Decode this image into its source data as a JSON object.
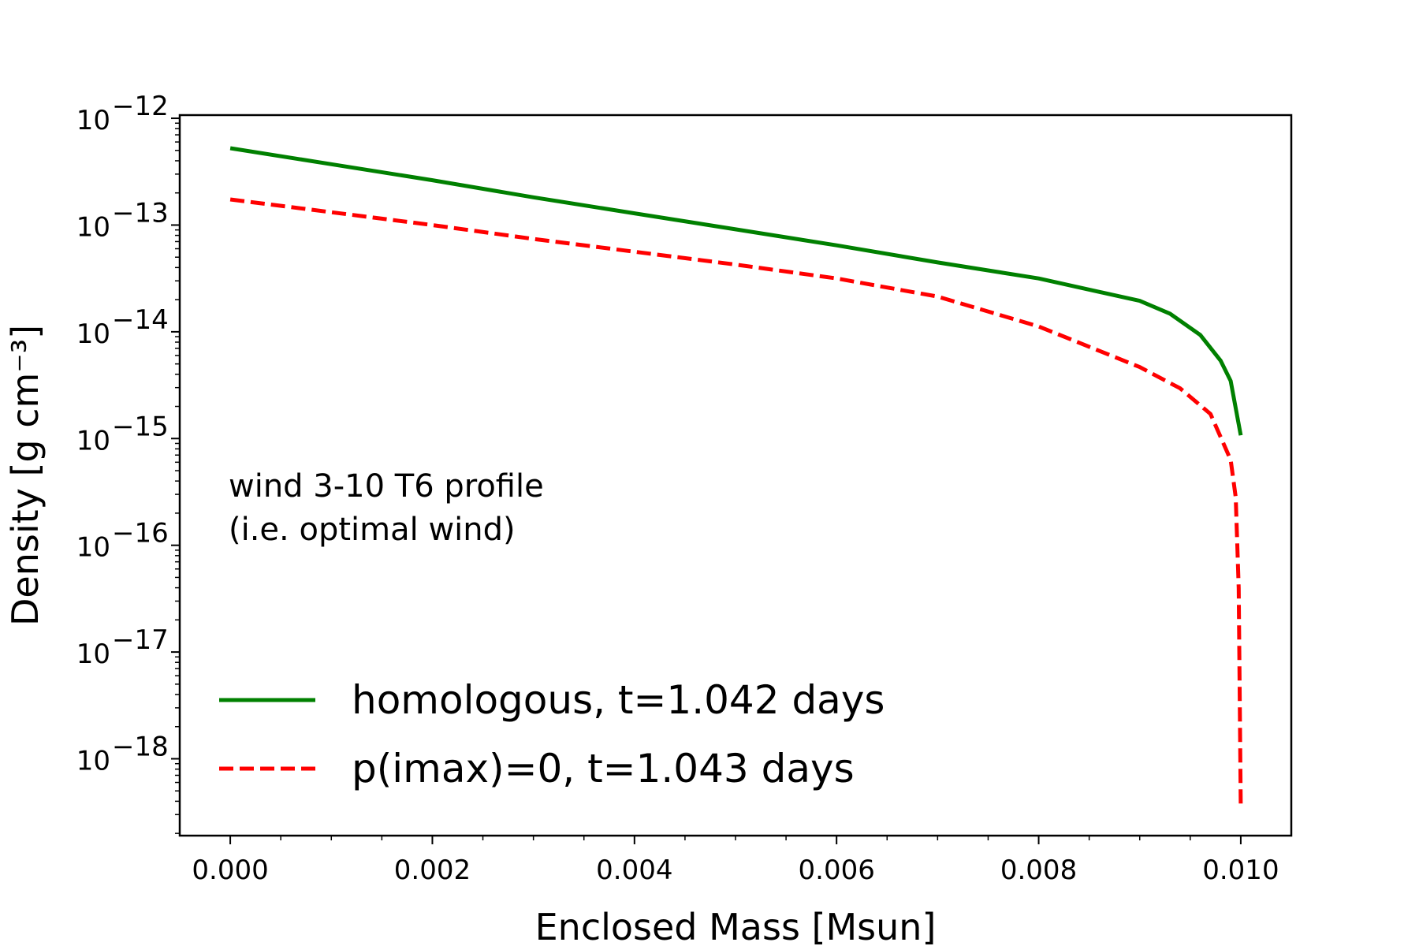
{
  "chart_data": {
    "type": "line",
    "xlabel": "Enclosed Mass [Msun]",
    "ylabel": "Density [g cm⁻³]",
    "yscale": "log",
    "xlim": [
      -0.0005,
      0.0105
    ],
    "ylim_exponent": [
      -18.72,
      -11.97
    ],
    "xticks": [
      "0.000",
      "0.002",
      "0.004",
      "0.006",
      "0.008",
      "0.010"
    ],
    "xtick_values": [
      0,
      0.002,
      0.004,
      0.006,
      0.008,
      0.01
    ],
    "yticks_base": "10",
    "ytick_exponents": [
      "−12",
      "−13",
      "−14",
      "−15",
      "−16",
      "−17",
      "−18"
    ],
    "ytick_values": [
      -12,
      -13,
      -14,
      -15,
      -16,
      -17,
      -18
    ],
    "annotation_lines": [
      "wind 3-10 T6 profile",
      "(i.e. optimal wind)"
    ],
    "legend_placement": "lower-left",
    "series": [
      {
        "name": "homologous, t=1.042 days",
        "color": "#008000",
        "style": "solid",
        "x": [
          0.0,
          0.001,
          0.002,
          0.003,
          0.004,
          0.005,
          0.006,
          0.007,
          0.008,
          0.009,
          0.0093,
          0.0096,
          0.0098,
          0.0099,
          0.01
        ],
        "log10_y": [
          -12.28,
          -12.43,
          -12.58,
          -12.74,
          -12.89,
          -13.04,
          -13.19,
          -13.35,
          -13.5,
          -13.71,
          -13.83,
          -14.03,
          -14.27,
          -14.46,
          -14.97
        ]
      },
      {
        "name": "p(imax)=0, t=1.043 days",
        "color": "#ff0000",
        "style": "dashed",
        "x": [
          0.0,
          0.001,
          0.002,
          0.003,
          0.004,
          0.005,
          0.006,
          0.007,
          0.008,
          0.009,
          0.0094,
          0.0097,
          0.0099,
          0.00995,
          0.00998,
          0.01
        ],
        "log10_y": [
          -12.76,
          -12.88,
          -13.0,
          -13.13,
          -13.25,
          -13.37,
          -13.5,
          -13.67,
          -13.95,
          -14.33,
          -14.53,
          -14.77,
          -15.2,
          -15.55,
          -16.4,
          -18.45
        ]
      }
    ]
  }
}
